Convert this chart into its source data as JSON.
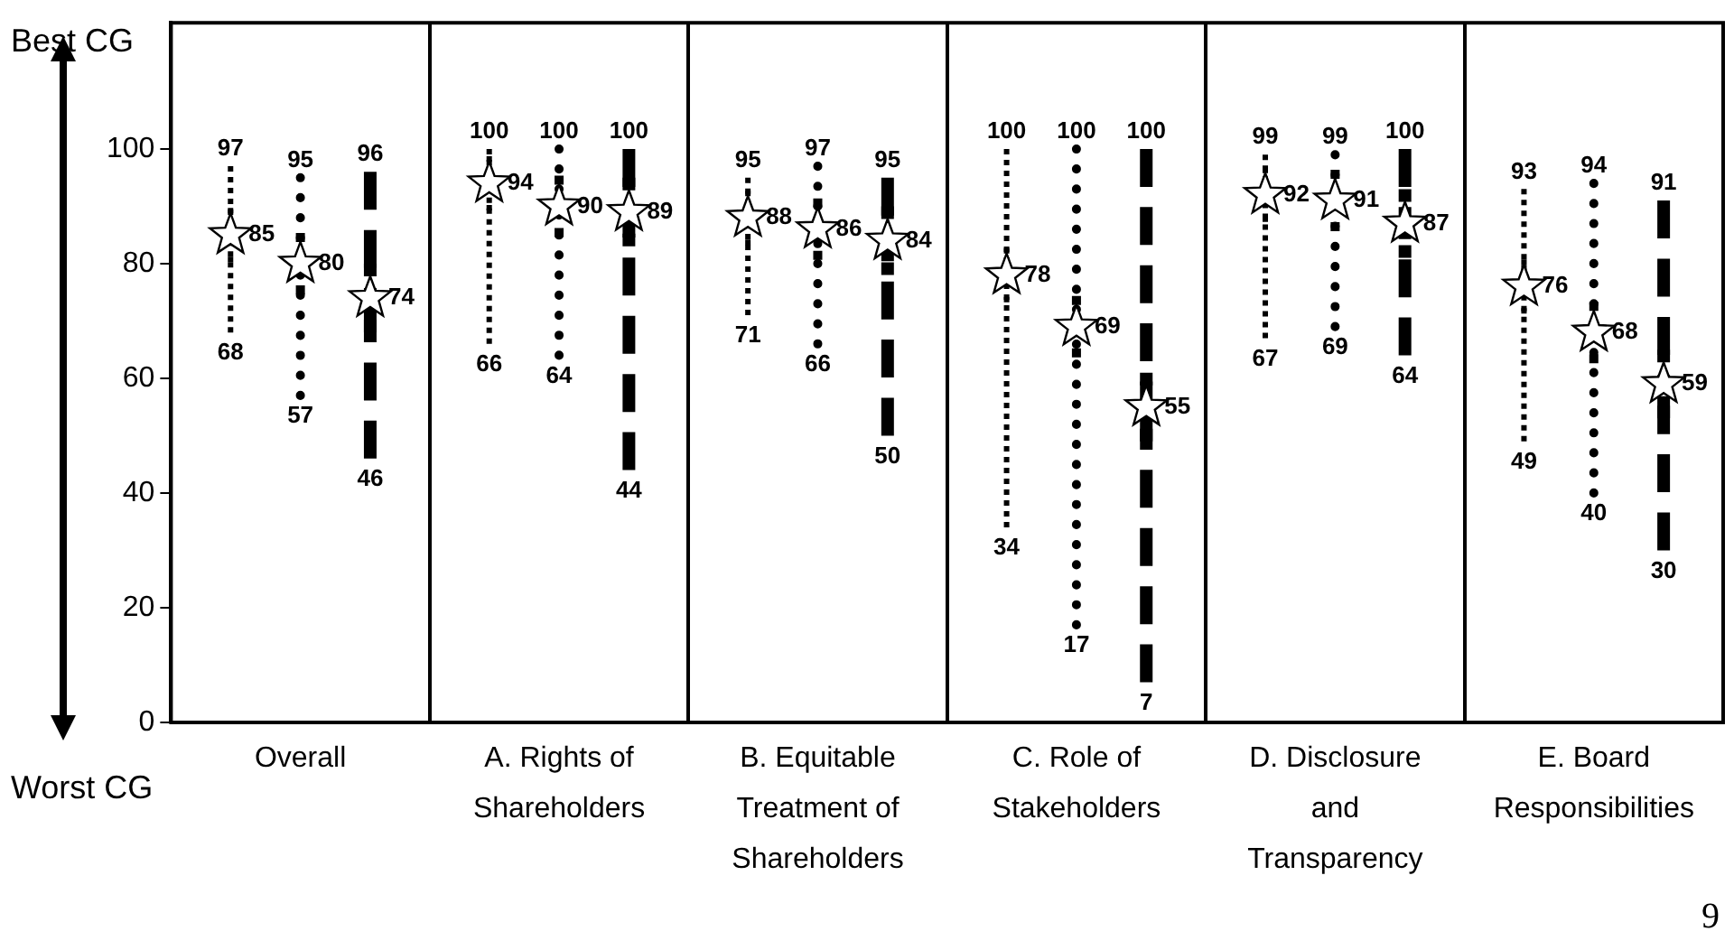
{
  "chart_data": {
    "type": "scatter",
    "categories": [
      "Overall",
      "A. Rights of Shareholders",
      "B. Equitable Treatment of Shareholders",
      "C. Role of Stakeholders",
      "D. Disclosure and Transparency",
      "E. Board Responsibilities"
    ],
    "series": [
      {
        "color": "#000000",
        "line_style": "dotted",
        "values": [
          85,
          94,
          88,
          78,
          92,
          76
        ],
        "errors": [
          [
            68,
            97
          ],
          [
            66,
            100
          ],
          [
            71,
            95
          ],
          [
            34,
            100
          ],
          [
            67,
            99
          ],
          [
            49,
            93
          ]
        ]
      },
      {
        "color": "#000000",
        "line_style": "dotted",
        "values": [
          80,
          90,
          86,
          69,
          91,
          68
        ],
        "errors": [
          [
            57,
            95
          ],
          [
            64,
            100
          ],
          [
            66,
            97
          ],
          [
            17,
            100
          ],
          [
            69,
            99
          ],
          [
            40,
            94
          ]
        ]
      },
      {
        "color": "#000000",
        "line_style": "dashed",
        "values": [
          74,
          89,
          84,
          55,
          87,
          59
        ],
        "errors": [
          [
            46,
            96
          ],
          [
            44,
            100
          ],
          [
            50,
            95
          ],
          [
            7,
            100
          ],
          [
            64,
            100
          ],
          [
            30,
            91
          ]
        ]
      }
    ],
    "ylim": [
      0,
      122
    ],
    "yticks": [
      0,
      20,
      40,
      60,
      80,
      100
    ],
    "grid": "x",
    "marker": "star",
    "data_labels": true,
    "annotations": [
      "Best CG",
      "Worst CG",
      "9",
      "97",
      "68",
      "95",
      "57",
      "96",
      "46",
      "100",
      "66",
      "100",
      "64",
      "100",
      "44",
      "95",
      "71",
      "97",
      "66",
      "95",
      "50",
      "100",
      "34",
      "100",
      "17",
      "100",
      "7",
      "99",
      "67",
      "99",
      "69",
      "100",
      "64",
      "93",
      "49",
      "94",
      "40",
      "91",
      "30"
    ]
  }
}
